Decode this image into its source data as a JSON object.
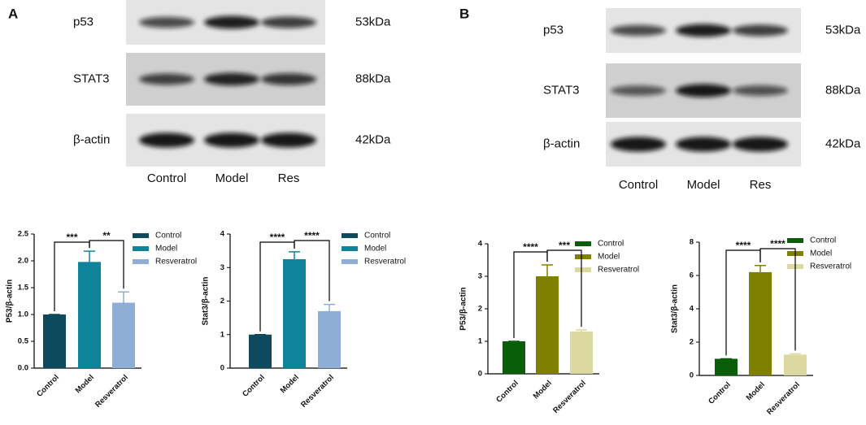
{
  "panels": [
    {
      "label": "A",
      "blot": {
        "proteins": [
          "p53",
          "STAT3",
          "β-actin"
        ],
        "sizes": [
          "53kDa",
          "88kDa",
          "42kDa"
        ],
        "lanes": [
          "Control",
          "Model",
          "Res"
        ]
      }
    },
    {
      "label": "B",
      "blot": {
        "proteins": [
          "p53",
          "STAT3",
          "β-actin"
        ],
        "sizes": [
          "53kDa",
          "88kDa",
          "42kDa"
        ],
        "lanes": [
          "Control",
          "Model",
          "Res"
        ]
      }
    }
  ],
  "chart_data": [
    {
      "type": "bar",
      "y_label": "P53/β-actin",
      "categories": [
        "Control",
        "Model",
        "Resveratrol"
      ],
      "values": [
        1.0,
        1.98,
        1.22
      ],
      "errors": [
        0,
        0.2,
        0.2
      ],
      "colors": [
        "#0d4a5e",
        "#0f8399",
        "#8eaed6"
      ],
      "ylim": [
        0,
        2.5
      ],
      "yticks": [
        {
          "value": 0,
          "label": "0.0"
        },
        0.5,
        {
          "value": 1,
          "label": "1.0"
        },
        1.5,
        {
          "value": 2,
          "label": "2.0"
        },
        2.5
      ],
      "significance": [
        "***",
        "**"
      ]
    },
    {
      "type": "bar",
      "y_label": "Stat3/β-actin",
      "categories": [
        "Control",
        "Model",
        "Resveratrol"
      ],
      "values": [
        1.0,
        3.25,
        1.7
      ],
      "errors": [
        0,
        0.22,
        0.2
      ],
      "colors": [
        "#0d4a5e",
        "#0f8399",
        "#8eaed6"
      ],
      "ylim": [
        0,
        4
      ],
      "yticks": [
        0,
        1,
        2,
        3,
        4
      ],
      "significance": [
        "****",
        "****"
      ]
    },
    {
      "type": "bar",
      "y_label": "P53/β-actin",
      "categories": [
        "Control",
        "Model",
        "Resveratrol"
      ],
      "values": [
        1.0,
        3.0,
        1.3
      ],
      "errors": [
        0,
        0.35,
        0.05
      ],
      "colors": [
        "#0a5e0a",
        "#808000",
        "#dcd9a0"
      ],
      "ylim": [
        0,
        4
      ],
      "yticks": [
        0,
        1,
        2,
        3,
        4
      ],
      "significance": [
        "****",
        "***"
      ]
    },
    {
      "type": "bar",
      "y_label": "Stat3/β-actin",
      "categories": [
        "Control",
        "Model",
        "Resveratrol"
      ],
      "values": [
        1.0,
        6.2,
        1.25
      ],
      "errors": [
        0,
        0.4,
        0.05
      ],
      "colors": [
        "#0a5e0a",
        "#808000",
        "#dcd9a0"
      ],
      "ylim": [
        0,
        8
      ],
      "yticks": [
        0,
        2,
        4,
        6,
        8
      ],
      "significance": [
        "****",
        "****"
      ]
    }
  ]
}
